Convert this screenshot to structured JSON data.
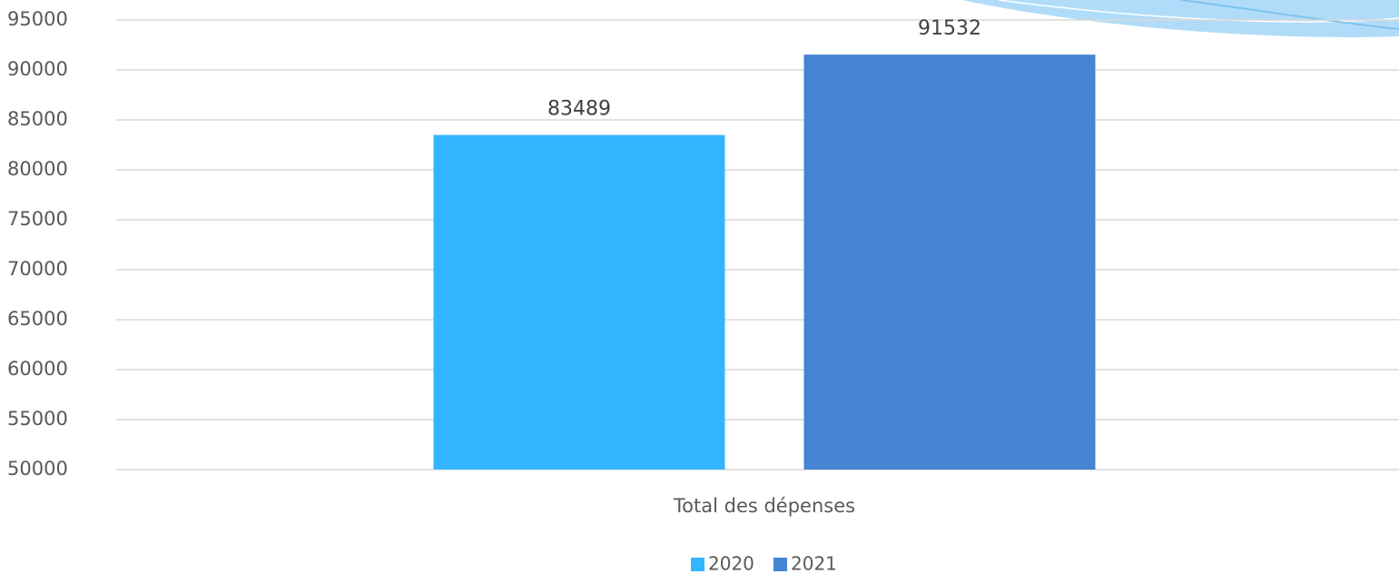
{
  "chart_data": {
    "type": "bar",
    "categories": [
      "Total des dépenses"
    ],
    "series": [
      {
        "name": "2020",
        "color": "#33b5ff",
        "values": [
          83489
        ]
      },
      {
        "name": "2021",
        "color": "#4584d3",
        "values": [
          91532
        ]
      }
    ],
    "ylim": [
      50000,
      95000
    ],
    "yticks": [
      50000,
      55000,
      60000,
      65000,
      70000,
      75000,
      80000,
      85000,
      90000,
      95000
    ],
    "grid": true,
    "legend": "bottom"
  }
}
